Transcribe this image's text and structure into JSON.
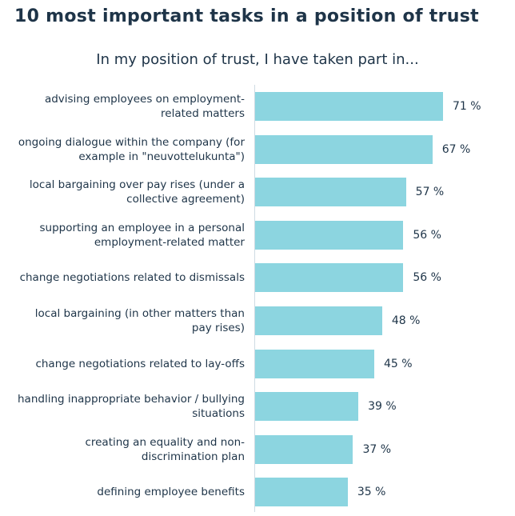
{
  "chart_data": {
    "type": "bar",
    "orientation": "horizontal",
    "title": "10 most important tasks in a position of trust",
    "subtitle": "In my position of trust, I have taken part in...",
    "xlabel": "",
    "ylabel": "",
    "xlim": [
      0,
      100
    ],
    "unit": " %",
    "grid": false,
    "bar_color": "#8cd5e0",
    "categories": [
      "advising employees on employment-related matters",
      "ongoing dialogue within the company (for example in \"neuvottelukunta\")",
      "local bargaining over pay rises (under a collective agreement)",
      "supporting an employee in a personal employment-related matter",
      "change negotiations related to dismissals",
      "local bargaining (in other matters than pay rises)",
      "change negotiations related to lay-offs",
      "handling inappropriate behavior / bullying situations",
      "creating an equality and non-discrimination plan",
      "defining employee benefits"
    ],
    "values": [
      71,
      67,
      57,
      56,
      56,
      48,
      45,
      39,
      37,
      35
    ],
    "value_labels": [
      "71 %",
      "67 %",
      "57 %",
      "56 %",
      "56 %",
      "48 %",
      "45 %",
      "39 %",
      "37 %",
      "35 %"
    ]
  }
}
